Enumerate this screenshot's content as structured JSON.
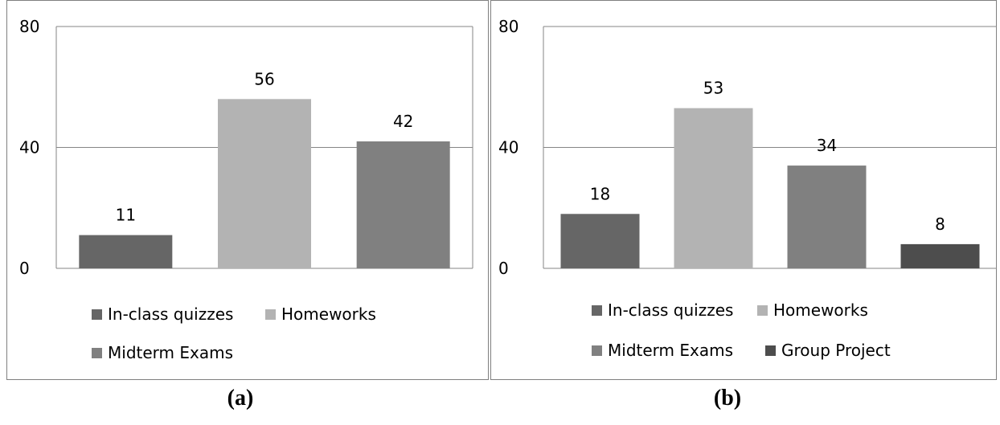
{
  "chart_data": [
    {
      "type": "bar",
      "categories": [
        "In-class quizzes",
        "Homeworks",
        "Midterm Exams"
      ],
      "values": [
        11,
        56,
        42
      ],
      "colors": [
        "#666666",
        "#b3b3b3",
        "#808080"
      ],
      "yticks": [
        "0",
        "40",
        "80"
      ],
      "ylim": [
        0,
        80
      ],
      "grid": true,
      "legend": [
        "In-class quizzes",
        "Homeworks",
        "Midterm Exams"
      ],
      "legend_position": "bottom",
      "caption": "(a)"
    },
    {
      "type": "bar",
      "categories": [
        "In-class quizzes",
        "Homeworks",
        "Midterm Exams",
        "Group Project"
      ],
      "values": [
        18,
        53,
        34,
        8
      ],
      "colors": [
        "#666666",
        "#b3b3b3",
        "#808080",
        "#4d4d4d"
      ],
      "yticks": [
        "0",
        "40",
        "80"
      ],
      "ylim": [
        0,
        80
      ],
      "grid": true,
      "legend": [
        "In-class quizzes",
        "Homeworks",
        "Midterm Exams",
        "Group Project"
      ],
      "legend_position": "bottom",
      "caption": "(b)"
    }
  ]
}
